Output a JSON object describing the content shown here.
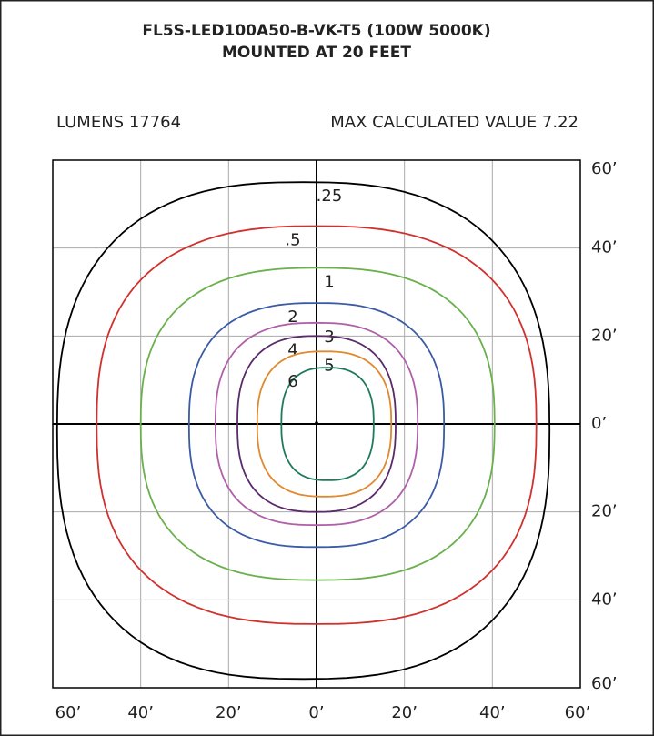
{
  "chart_data": {
    "type": "contour",
    "title": [
      "FL5S-LED100A50-B-VK-T5 (100W 5000K)",
      "MOUNTED AT 20 FEET"
    ],
    "subtitle": [
      "LUMENS 17764",
      "MAX CALCULATED VALUE 7.22"
    ],
    "xlim": [
      -60,
      60
    ],
    "ylim": [
      -60,
      60
    ],
    "xticks": [
      {
        "value": -60,
        "label": "60’"
      },
      {
        "value": -40,
        "label": "40’"
      },
      {
        "value": -20,
        "label": "20’"
      },
      {
        "value": 0,
        "label": "0’"
      },
      {
        "value": 20,
        "label": "20’"
      },
      {
        "value": 40,
        "label": "40’"
      },
      {
        "value": 60,
        "label": "60’"
      }
    ],
    "yticks": [
      {
        "value": 60,
        "label": "60’"
      },
      {
        "value": 40,
        "label": "40’"
      },
      {
        "value": 20,
        "label": "20’"
      },
      {
        "value": 0,
        "label": "0’"
      },
      {
        "value": -20,
        "label": "20’"
      },
      {
        "value": -40,
        "label": "40’"
      },
      {
        "value": -60,
        "label": "60’"
      }
    ],
    "grid": true,
    "series": [
      {
        "value": 0.25,
        "value_label": ".25",
        "color": "#000000",
        "xrange": [
          -59,
          53
        ],
        "yrange": [
          -58,
          55
        ]
      },
      {
        "value": 0.5,
        "value_label": ".5",
        "color": "#d0312d",
        "xrange": [
          -50,
          50
        ],
        "yrange": [
          -45.5,
          45
        ]
      },
      {
        "value": 1,
        "value_label": "1",
        "color": "#6ab04c",
        "xrange": [
          -40,
          40.5
        ],
        "yrange": [
          -35.5,
          35.5
        ]
      },
      {
        "value": 2,
        "value_label": "2",
        "color": "#3b5ba5",
        "xrange": [
          -29,
          29
        ],
        "yrange": [
          -28,
          27.5
        ]
      },
      {
        "value": 3,
        "value_label": "3",
        "color": "#b060a8",
        "xrange": [
          -23,
          23
        ],
        "yrange": [
          -23,
          23
        ]
      },
      {
        "value": 4,
        "value_label": "4",
        "color": "#5a2a6a",
        "xrange": [
          -18,
          18
        ],
        "yrange": [
          -20,
          20
        ]
      },
      {
        "value": 5,
        "value_label": "5",
        "color": "#e0892e",
        "xrange": [
          -13.5,
          17
        ],
        "yrange": [
          -16.5,
          16.5
        ]
      },
      {
        "value": 6,
        "value_label": "6",
        "color": "#1f7a5a",
        "xrange": [
          -8,
          13
        ],
        "yrange": [
          -12.8,
          12.8
        ]
      }
    ]
  }
}
